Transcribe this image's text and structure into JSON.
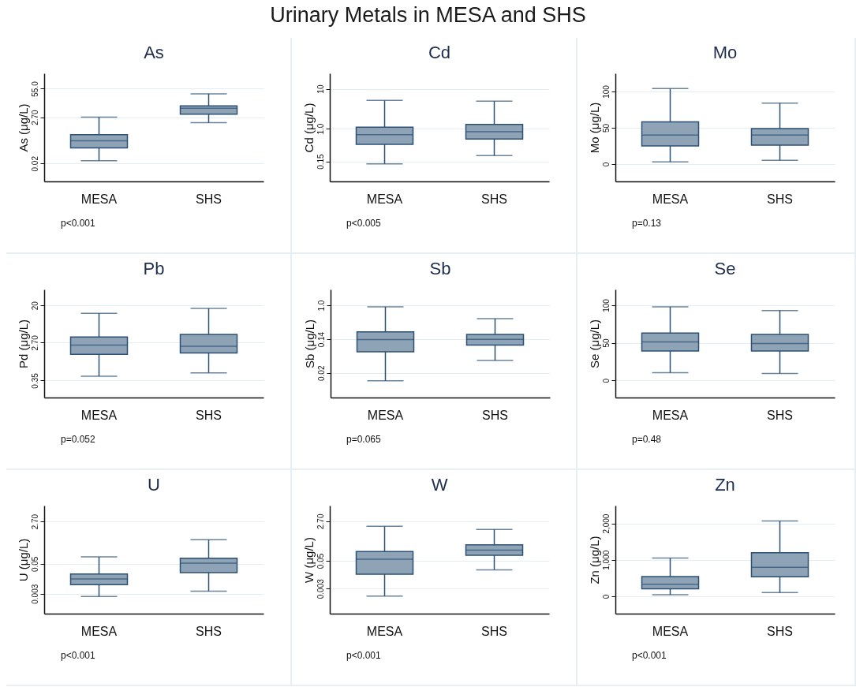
{
  "chart_data": [
    {
      "type": "other",
      "title": "Urinary Metals in MESA and SHS"
    },
    {
      "type": "box",
      "title": "As",
      "ylabel": "As (μg/L)",
      "categories": [
        "MESA",
        "SHS"
      ],
      "log": true,
      "grid": "y",
      "ylim": [
        0.003,
        280
      ],
      "yticks": [
        {
          "value": 0.02,
          "label": "0.02"
        },
        {
          "value": 2.7,
          "label": "2.70"
        },
        {
          "value": 55,
          "label": "55.0"
        }
      ],
      "series": [
        {
          "color": "#8ea3b6",
          "boxes": [
            {
              "low": 0.027,
              "q1": 0.105,
              "median": 0.22,
              "q3": 0.42,
              "high": 2.7
            },
            {
              "low": 1.5,
              "q1": 3.7,
              "median": 7.0,
              "q3": 9.0,
              "high": 32
            }
          ]
        }
      ],
      "annotations": [
        "p<0.001"
      ]
    },
    {
      "type": "box",
      "title": "Cd",
      "ylabel": "Cd (μg/L)",
      "categories": [
        "MESA",
        "SHS"
      ],
      "log": true,
      "grid": "y",
      "ylim": [
        0.047,
        24.5
      ],
      "yticks": [
        0.15,
        {
          "value": 1,
          "label": "1.0"
        },
        10
      ],
      "series": [
        {
          "color": "#8ea3b6",
          "boxes": [
            {
              "low": 0.13,
              "q1": 0.4,
              "median": 0.7,
              "q3": 1.08,
              "high": 5.1
            },
            {
              "low": 0.21,
              "q1": 0.55,
              "median": 0.83,
              "q3": 1.27,
              "high": 4.9
            }
          ]
        }
      ],
      "annotations": [
        "p<0.005"
      ]
    },
    {
      "type": "box",
      "title": "Mo",
      "ylabel": "Mo (μg/L)",
      "categories": [
        "MESA",
        "SHS"
      ],
      "grid": "y",
      "ylim": [
        -24,
        125
      ],
      "yticks": [
        0,
        50,
        100
      ],
      "series": [
        {
          "color": "#8ea3b6",
          "boxes": [
            {
              "low": 3,
              "q1": 25,
              "median": 40,
              "q3": 58,
              "high": 104
            },
            {
              "low": 5,
              "q1": 26,
              "median": 40,
              "q3": 49,
              "high": 84
            }
          ]
        }
      ],
      "annotations": [
        "p=0.13"
      ]
    },
    {
      "type": "box",
      "title": "Pb",
      "ylabel": "Pd (μg/L)",
      "categories": [
        "MESA",
        "SHS"
      ],
      "log": true,
      "grid": "y",
      "ylim": [
        0.14,
        47
      ],
      "yticks": [
        0.35,
        {
          "value": 2.7,
          "label": "2.70"
        },
        20
      ],
      "series": [
        {
          "color": "#8ea3b6",
          "boxes": [
            {
              "low": 0.44,
              "q1": 1.43,
              "median": 2.35,
              "q3": 3.65,
              "high": 13
            },
            {
              "low": 0.53,
              "q1": 1.54,
              "median": 2.2,
              "q3": 4.2,
              "high": 17
            }
          ]
        }
      ],
      "annotations": [
        "p=0.052"
      ]
    },
    {
      "type": "box",
      "title": "Sb",
      "ylabel": "Sb (μg/L)",
      "categories": [
        "MESA",
        "SHS"
      ],
      "log": true,
      "grid": "y",
      "ylim": [
        0.0048,
        2.5
      ],
      "yticks": [
        0.02,
        0.14,
        {
          "value": 1,
          "label": "1.0"
        }
      ],
      "series": [
        {
          "color": "#8ea3b6",
          "boxes": [
            {
              "low": 0.0126,
              "q1": 0.068,
              "median": 0.138,
              "q3": 0.215,
              "high": 0.92
            },
            {
              "low": 0.041,
              "q1": 0.1,
              "median": 0.14,
              "q3": 0.186,
              "high": 0.46
            }
          ]
        }
      ],
      "annotations": [
        "p=0.065"
      ]
    },
    {
      "type": "box",
      "title": "Se",
      "ylabel": "Se (μg/L)",
      "categories": [
        "MESA",
        "SHS"
      ],
      "grid": "y",
      "ylim": [
        -23,
        121
      ],
      "yticks": [
        0,
        50,
        100
      ],
      "series": [
        {
          "color": "#8ea3b6",
          "boxes": [
            {
              "low": 10,
              "q1": 39,
              "median": 51,
              "q3": 63,
              "high": 98
            },
            {
              "low": 9,
              "q1": 39,
              "median": 49,
              "q3": 61,
              "high": 93
            }
          ]
        }
      ],
      "annotations": [
        "p=0.48"
      ]
    },
    {
      "type": "box",
      "title": "U",
      "ylabel": "U (μg/L)",
      "categories": [
        "MESA",
        "SHS"
      ],
      "log": true,
      "grid": "y",
      "ylim": [
        0.00046,
        12
      ],
      "yticks": [
        0.003,
        0.05,
        {
          "value": 2.7,
          "label": "2.70"
        }
      ],
      "series": [
        {
          "color": "#8ea3b6",
          "boxes": [
            {
              "low": 0.0023,
              "q1": 0.007,
              "median": 0.012,
              "q3": 0.019,
              "high": 0.096
            },
            {
              "low": 0.0038,
              "q1": 0.022,
              "median": 0.053,
              "q3": 0.085,
              "high": 0.48
            }
          ]
        }
      ],
      "annotations": [
        "p<0.001"
      ]
    },
    {
      "type": "box",
      "title": "W",
      "ylabel": "W (μg/L)",
      "categories": [
        "MESA",
        "SHS"
      ],
      "log": true,
      "grid": "y",
      "ylim": [
        0.00024,
        13
      ],
      "yticks": [
        0.003,
        0.05,
        {
          "value": 2.7,
          "label": "2.70"
        }
      ],
      "series": [
        {
          "color": "#8ea3b6",
          "boxes": [
            {
              "low": 0.0014,
              "q1": 0.0127,
              "median": 0.058,
              "q3": 0.126,
              "high": 1.6
            },
            {
              "low": 0.02,
              "q1": 0.086,
              "median": 0.145,
              "q3": 0.25,
              "high": 1.18
            }
          ]
        }
      ],
      "annotations": [
        "p<0.001"
      ]
    },
    {
      "type": "box",
      "title": "Zn",
      "ylabel": "Zn (μg/L)",
      "categories": [
        "MESA",
        "SHS"
      ],
      "grid": "y",
      "ylim": [
        -480,
        2490
      ],
      "yticks": [
        0,
        {
          "value": 1000,
          "label": "1,000"
        },
        {
          "value": 2000,
          "label": "2,000"
        }
      ],
      "series": [
        {
          "color": "#8ea3b6",
          "boxes": [
            {
              "low": 38,
              "q1": 205,
              "median": 327,
              "q3": 540,
              "high": 1049
            },
            {
              "low": 99,
              "q1": 532,
              "median": 791,
              "q3": 1194,
              "high": 2068
            }
          ]
        }
      ],
      "annotations": [
        "p<0.001"
      ]
    }
  ]
}
